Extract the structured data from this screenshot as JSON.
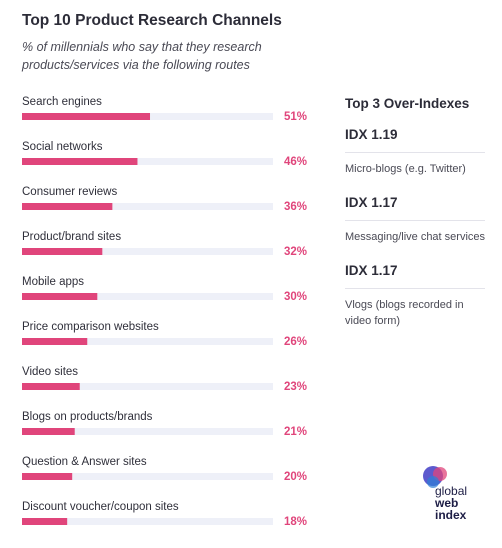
{
  "header": {
    "title": "Top 10 Product Research Channels",
    "subtitle": "% of millennials who say that they research products/services via the following routes"
  },
  "chart_data": {
    "type": "bar",
    "orientation": "horizontal",
    "categories": [
      "Search engines",
      "Social networks",
      "Consumer reviews",
      "Product/brand sites",
      "Mobile apps",
      "Price comparison websites",
      "Video sites",
      "Blogs on products/brands",
      "Question & Answer sites",
      "Discount voucher/coupon sites"
    ],
    "values": [
      51,
      46,
      36,
      32,
      30,
      26,
      23,
      21,
      20,
      18
    ],
    "value_labels": [
      "51%",
      "46%",
      "36%",
      "32%",
      "30%",
      "26%",
      "23%",
      "21%",
      "20%",
      "18%"
    ],
    "xlim": [
      0,
      100
    ],
    "grid": false,
    "colors": {
      "bar": "#e0457b",
      "track": "#eef0f8",
      "value_label": "#e0457b"
    }
  },
  "over_indexes": {
    "title": "Top 3 Over-Indexes",
    "items": [
      {
        "idx": "IDX 1.19",
        "label": "Micro-blogs (e.g. Twitter)"
      },
      {
        "idx": "IDX 1.17",
        "label": "Messaging/live chat services"
      },
      {
        "idx": "IDX 1.17",
        "label": "Vlogs (blogs recorded in video form)"
      }
    ]
  },
  "logo": {
    "line1": "global",
    "line2": "web",
    "line3": "index"
  }
}
